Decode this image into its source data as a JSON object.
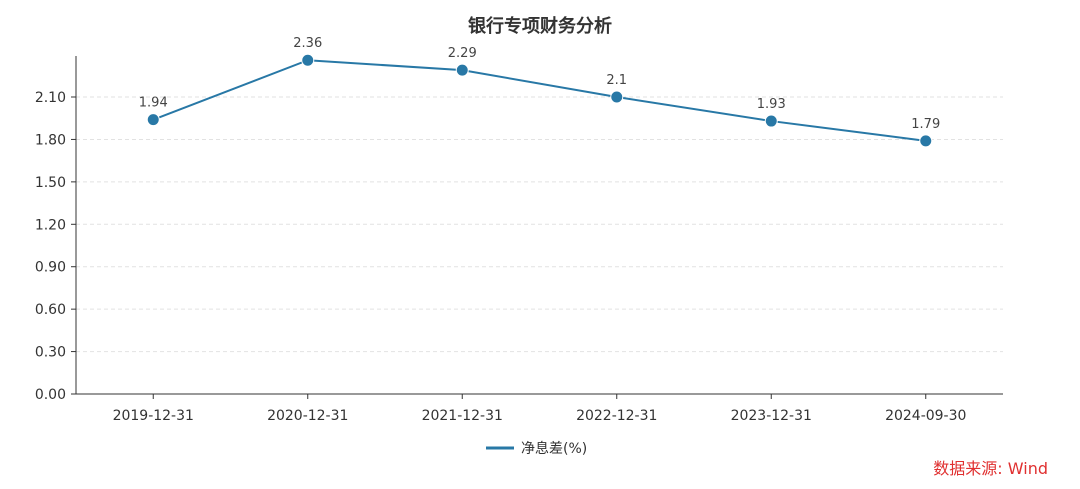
{
  "chart_data": {
    "type": "line",
    "title": "银行专项财务分析",
    "categories": [
      "2019-12-31",
      "2020-12-31",
      "2021-12-31",
      "2022-12-31",
      "2023-12-31",
      "2024-09-30"
    ],
    "series": [
      {
        "name": "净息差(%)",
        "values": [
          1.94,
          2.36,
          2.29,
          2.1,
          1.93,
          1.79
        ],
        "labels": [
          "1.94",
          "2.36",
          "2.29",
          "2.1",
          "1.93",
          "1.79"
        ]
      }
    ],
    "yticks": [
      "0.00",
      "0.30",
      "0.60",
      "0.90",
      "1.20",
      "1.50",
      "1.80",
      "2.10"
    ],
    "ylim": [
      0,
      2.39
    ],
    "grid": true,
    "legend_position": "bottom-center"
  },
  "colors": {
    "series": "#2878a6",
    "source_text": "#e03030",
    "grid": "#e2e2e2",
    "axis": "#333333"
  },
  "source": "数据来源: Wind"
}
